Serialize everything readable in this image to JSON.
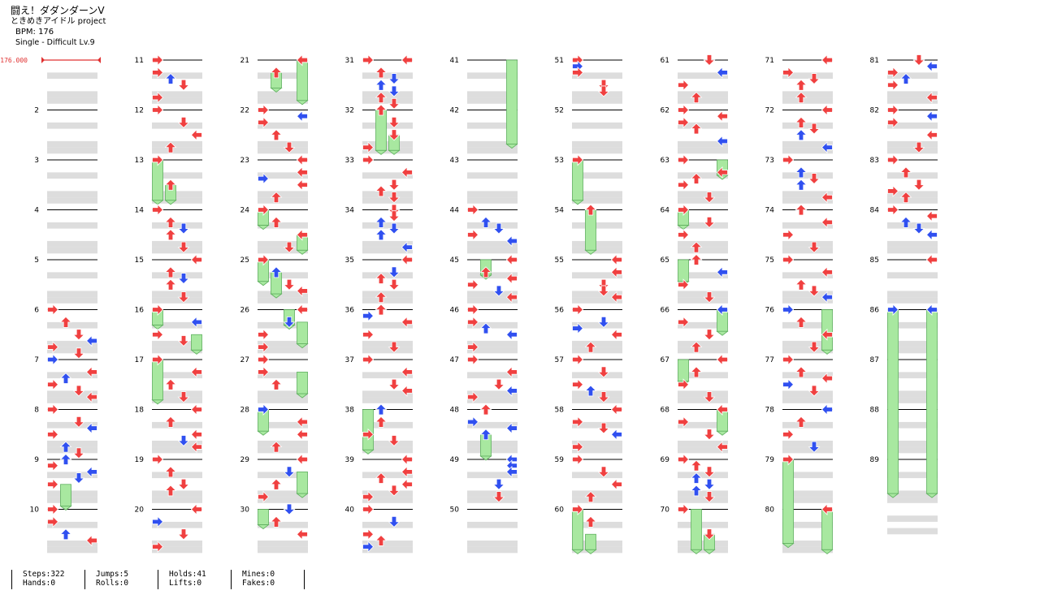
{
  "song": {
    "title": "闘え！ダダンダーンV",
    "artist": "ときめきアイドル project",
    "bpm": "BPM: 176",
    "difficulty": "Single - Difficult Lv.9"
  },
  "bpm_marker": {
    "label": "176.000",
    "color": "#e03030"
  },
  "colors": {
    "red_arrow": "#f04040",
    "blue_arrow": "#3050f0",
    "hold_fill": "#a8e8a0",
    "hold_border": "#60b060",
    "band": "#dddddd",
    "measure_line": "#000000"
  },
  "measure_numbers": [
    "2",
    "3",
    "4",
    "5",
    "6",
    "7",
    "8",
    "9",
    "10",
    "11",
    "12",
    "13",
    "14",
    "15",
    "16",
    "17",
    "18",
    "19",
    "20",
    "21",
    "22",
    "23",
    "24",
    "25",
    "26",
    "27",
    "28",
    "29",
    "30",
    "31",
    "32",
    "33",
    "34",
    "35",
    "36",
    "37",
    "38",
    "39",
    "40",
    "41",
    "42",
    "43",
    "44",
    "45",
    "46",
    "47",
    "48",
    "49",
    "50",
    "51",
    "52",
    "53",
    "54",
    "55",
    "56",
    "57",
    "58",
    "59",
    "60",
    "61",
    "62",
    "63",
    "64",
    "65",
    "66",
    "67",
    "68",
    "69",
    "70",
    "71",
    "72",
    "73",
    "74",
    "75",
    "76",
    "77",
    "78",
    "79",
    "80",
    "81",
    "82",
    "83",
    "84",
    "85",
    "86",
    "87",
    "88",
    "89"
  ],
  "stats": [
    {
      "line1": "Steps:322",
      "line2": "Hands:0"
    },
    {
      "line1": "Jumps:5",
      "line2": "Rolls:0"
    },
    {
      "line1": "Holds:41",
      "line2": "Lifts:0"
    },
    {
      "line1": "Mines:0",
      "line2": "Fakes:0"
    }
  ],
  "icons": {
    "arrow": "arrow-icon",
    "hold": "hold-note",
    "bpm_marker": "bpm-marker"
  }
}
